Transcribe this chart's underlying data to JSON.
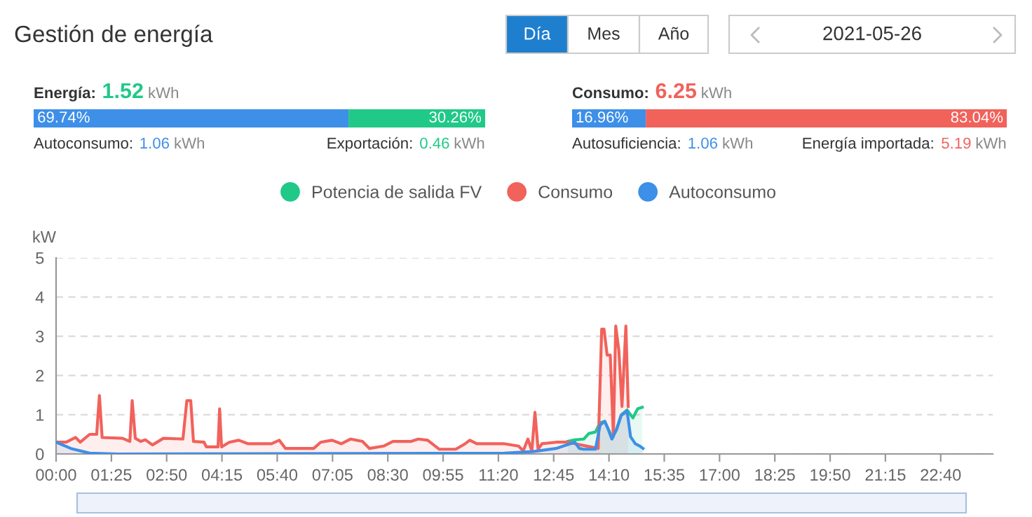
{
  "chart_data": [
    {
      "type": "other",
      "title": "Gestión de energía",
      "annotations": [
        "Día",
        "Mes",
        "Año",
        "2021-05-26"
      ]
    },
    {
      "type": "bar",
      "orientation": "horizontal",
      "stacked": true,
      "title": "Energía: 1.52 kWh",
      "categories": [
        null
      ],
      "xlim": [
        0,
        100
      ],
      "tick_labels": false,
      "series": [
        {
          "color": "#3d8fe8",
          "values": [
            69.74
          ],
          "value_labels": [
            "69.74%"
          ]
        },
        {
          "color": "#20c987",
          "values": [
            30.26
          ],
          "value_labels": [
            "30.26%"
          ]
        }
      ],
      "annotations": [
        "Autoconsumo: 1.06 kWh",
        "Exportación: 0.46 kWh"
      ]
    },
    {
      "type": "bar",
      "orientation": "horizontal",
      "stacked": true,
      "title": "Consumo: 6.25 kWh",
      "categories": [
        null
      ],
      "xlim": [
        0,
        100
      ],
      "tick_labels": false,
      "series": [
        {
          "color": "#3d8fe8",
          "values": [
            16.96
          ],
          "value_labels": [
            "16.96%"
          ]
        },
        {
          "color": "#f1625b",
          "values": [
            83.04
          ],
          "value_labels": [
            "83.04%"
          ]
        }
      ],
      "annotations": [
        "Autosuficiencia: 1.06 kWh",
        "Energía importada: 5.19 kWh"
      ]
    },
    {
      "type": "area",
      "ylabel": "kW",
      "xlim": [
        0,
        24
      ],
      "ylim": [
        0,
        5
      ],
      "yticks": [
        0,
        1,
        2,
        3,
        4,
        5
      ],
      "grid": "y",
      "legend": "top",
      "xticks": [
        {
          "value": 0,
          "label": "00:00"
        },
        {
          "value": 1.4167,
          "label": "01:25"
        },
        {
          "value": 2.8333,
          "label": "02:50"
        },
        {
          "value": 4.25,
          "label": "04:15"
        },
        {
          "value": 5.6667,
          "label": "05:40"
        },
        {
          "value": 7.0833,
          "label": "07:05"
        },
        {
          "value": 8.5,
          "label": "08:30"
        },
        {
          "value": 9.9167,
          "label": "09:55"
        },
        {
          "value": 11.3333,
          "label": "11:20"
        },
        {
          "value": 12.75,
          "label": "12:45"
        },
        {
          "value": 14.1667,
          "label": "14:10"
        },
        {
          "value": 15.5833,
          "label": "15:35"
        },
        {
          "value": 17,
          "label": "17:00"
        },
        {
          "value": 18.4167,
          "label": "18:25"
        },
        {
          "value": 19.8333,
          "label": "19:50"
        },
        {
          "value": 21.25,
          "label": "21:15"
        },
        {
          "value": 22.6667,
          "label": "22:40"
        }
      ],
      "series": [
        {
          "name": "Potencia de salida FV",
          "color": "#20c987",
          "x": [
            13.11,
            13.29,
            13.52,
            13.65,
            13.82,
            13.94,
            14.06,
            14.24,
            14.36,
            14.48,
            14.63,
            14.78,
            14.9,
            15.02
          ],
          "values": [
            0.32,
            0.36,
            0.38,
            0.52,
            0.56,
            0.8,
            0.83,
            0.44,
            0.62,
            1.0,
            1.12,
            0.92,
            1.15,
            1.19
          ]
        },
        {
          "name": "Consumo",
          "color": "#f1625b",
          "x": [
            0,
            0.26,
            0.5,
            0.62,
            0.86,
            1.04,
            1.11,
            1.18,
            1.7,
            1.89,
            1.95,
            2.03,
            2.17,
            2.29,
            2.47,
            2.75,
            3.25,
            3.35,
            3.45,
            3.52,
            3.79,
            3.85,
            4.15,
            4.19,
            4.24,
            4.44,
            4.68,
            4.92,
            5.52,
            5.72,
            5.88,
            6.6,
            6.78,
            7.07,
            7.31,
            7.55,
            7.85,
            8.03,
            8.39,
            8.63,
            9.1,
            9.28,
            9.52,
            9.82,
            10.24,
            10.48,
            10.6,
            10.78,
            11.49,
            11.85,
            11.97,
            12.09,
            12.19,
            12.27,
            12.35,
            12.45,
            12.81,
            13.11,
            13.89,
            13.98,
            14.04,
            14.12,
            14.2,
            14.28,
            14.34,
            14.42,
            14.5,
            14.6,
            14.66
          ],
          "values": [
            0.3,
            0.3,
            0.42,
            0.3,
            0.5,
            0.5,
            1.49,
            0.42,
            0.4,
            0.32,
            1.36,
            0.4,
            0.32,
            0.36,
            0.23,
            0.4,
            0.38,
            1.36,
            1.36,
            0.32,
            0.3,
            0.18,
            0.18,
            1.15,
            0.18,
            0.3,
            0.35,
            0.26,
            0.26,
            0.35,
            0.14,
            0.14,
            0.3,
            0.35,
            0.26,
            0.38,
            0.32,
            0.14,
            0.2,
            0.32,
            0.32,
            0.38,
            0.35,
            0.12,
            0.12,
            0.26,
            0.35,
            0.26,
            0.26,
            0.2,
            0.08,
            0.38,
            0.08,
            1.06,
            0.12,
            0.26,
            0.3,
            0.3,
            0.14,
            3.18,
            3.18,
            2.52,
            2.52,
            0.44,
            3.26,
            2.64,
            1.21,
            3.26,
            1.21
          ]
        },
        {
          "name": "Autoconsumo",
          "color": "#3d8fe8",
          "x": [
            0,
            0.38,
            0.86,
            1.58,
            11.49,
            12.21,
            12.81,
            13.17,
            13.29,
            13.41,
            13.52,
            13.82,
            13.94,
            14.06,
            14.15,
            14.24,
            14.36,
            14.48,
            14.63,
            14.72,
            14.84,
            14.96,
            15.04
          ],
          "values": [
            0.3,
            0.14,
            0.02,
            0,
            0.02,
            0.06,
            0.14,
            0.26,
            0.3,
            0.14,
            0.12,
            0.12,
            0.74,
            0.83,
            0.62,
            0.38,
            0.62,
            0.98,
            1.1,
            0.44,
            0.26,
            0.2,
            0.14
          ]
        }
      ]
    }
  ]
}
